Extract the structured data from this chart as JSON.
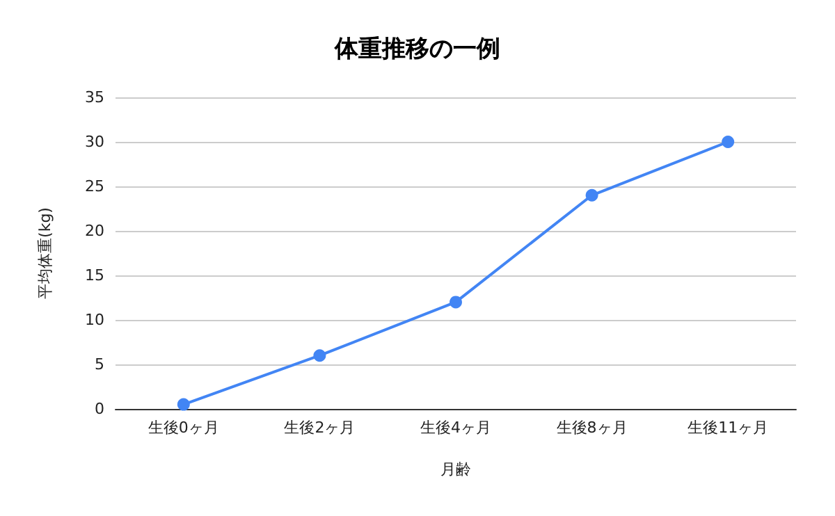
{
  "chart_data": {
    "type": "line",
    "title": "体重推移の一例",
    "xlabel": "月齢",
    "ylabel": "平均体重(kg)",
    "categories": [
      "生後0ヶ月",
      "生後2ヶ月",
      "生後4ヶ月",
      "生後8ヶ月",
      "生後11ヶ月"
    ],
    "series": [
      {
        "color": "#4285f4",
        "values": [
          0.5,
          6,
          12,
          24,
          30
        ]
      }
    ],
    "ylim": [
      0,
      35
    ],
    "yticks": [
      0,
      5,
      10,
      15,
      20,
      25,
      30,
      35
    ],
    "grid": "y",
    "marker": "circle",
    "line_style": "solid"
  }
}
